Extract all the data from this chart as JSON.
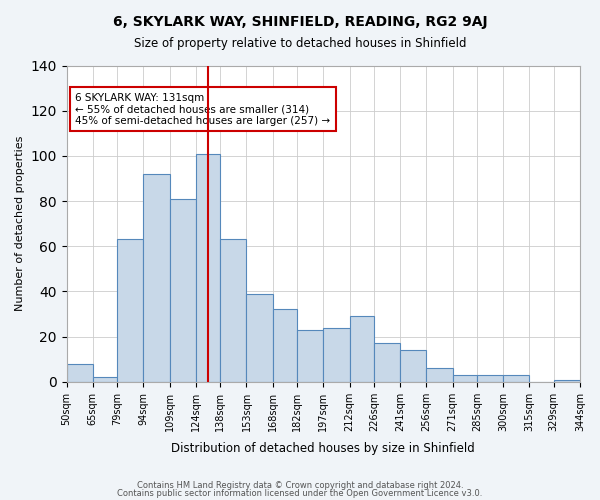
{
  "title": "6, SKYLARK WAY, SHINFIELD, READING, RG2 9AJ",
  "subtitle": "Size of property relative to detached houses in Shinfield",
  "xlabel": "Distribution of detached houses by size in Shinfield",
  "ylabel": "Number of detached properties",
  "bin_labels": [
    "50sqm",
    "65sqm",
    "79sqm",
    "94sqm",
    "109sqm",
    "124sqm",
    "138sqm",
    "153sqm",
    "168sqm",
    "182sqm",
    "197sqm",
    "212sqm",
    "226sqm",
    "241sqm",
    "256sqm",
    "271sqm",
    "285sqm",
    "300sqm",
    "315sqm",
    "329sqm",
    "344sqm"
  ],
  "bar_heights": [
    8,
    2,
    63,
    92,
    81,
    101,
    63,
    39,
    32,
    23,
    24,
    29,
    17,
    14,
    6,
    3,
    3,
    3,
    0,
    1
  ],
  "bin_edges": [
    50,
    65,
    79,
    94,
    109,
    124,
    138,
    153,
    168,
    182,
    197,
    212,
    226,
    241,
    256,
    271,
    285,
    300,
    315,
    329,
    344
  ],
  "bar_color": "#c8d8e8",
  "bar_edge_color": "#5588bb",
  "vline_x": 131,
  "vline_color": "#cc0000",
  "annotation_text": "6 SKYLARK WAY: 131sqm\n← 55% of detached houses are smaller (314)\n45% of semi-detached houses are larger (257) →",
  "annotation_box_color": "#cc0000",
  "ylim": [
    0,
    140
  ],
  "yticks": [
    0,
    20,
    40,
    60,
    80,
    100,
    120,
    140
  ],
  "footer_line1": "Contains HM Land Registry data © Crown copyright and database right 2024.",
  "footer_line2": "Contains public sector information licensed under the Open Government Licence v3.0.",
  "background_color": "#f0f4f8",
  "plot_background_color": "#ffffff"
}
